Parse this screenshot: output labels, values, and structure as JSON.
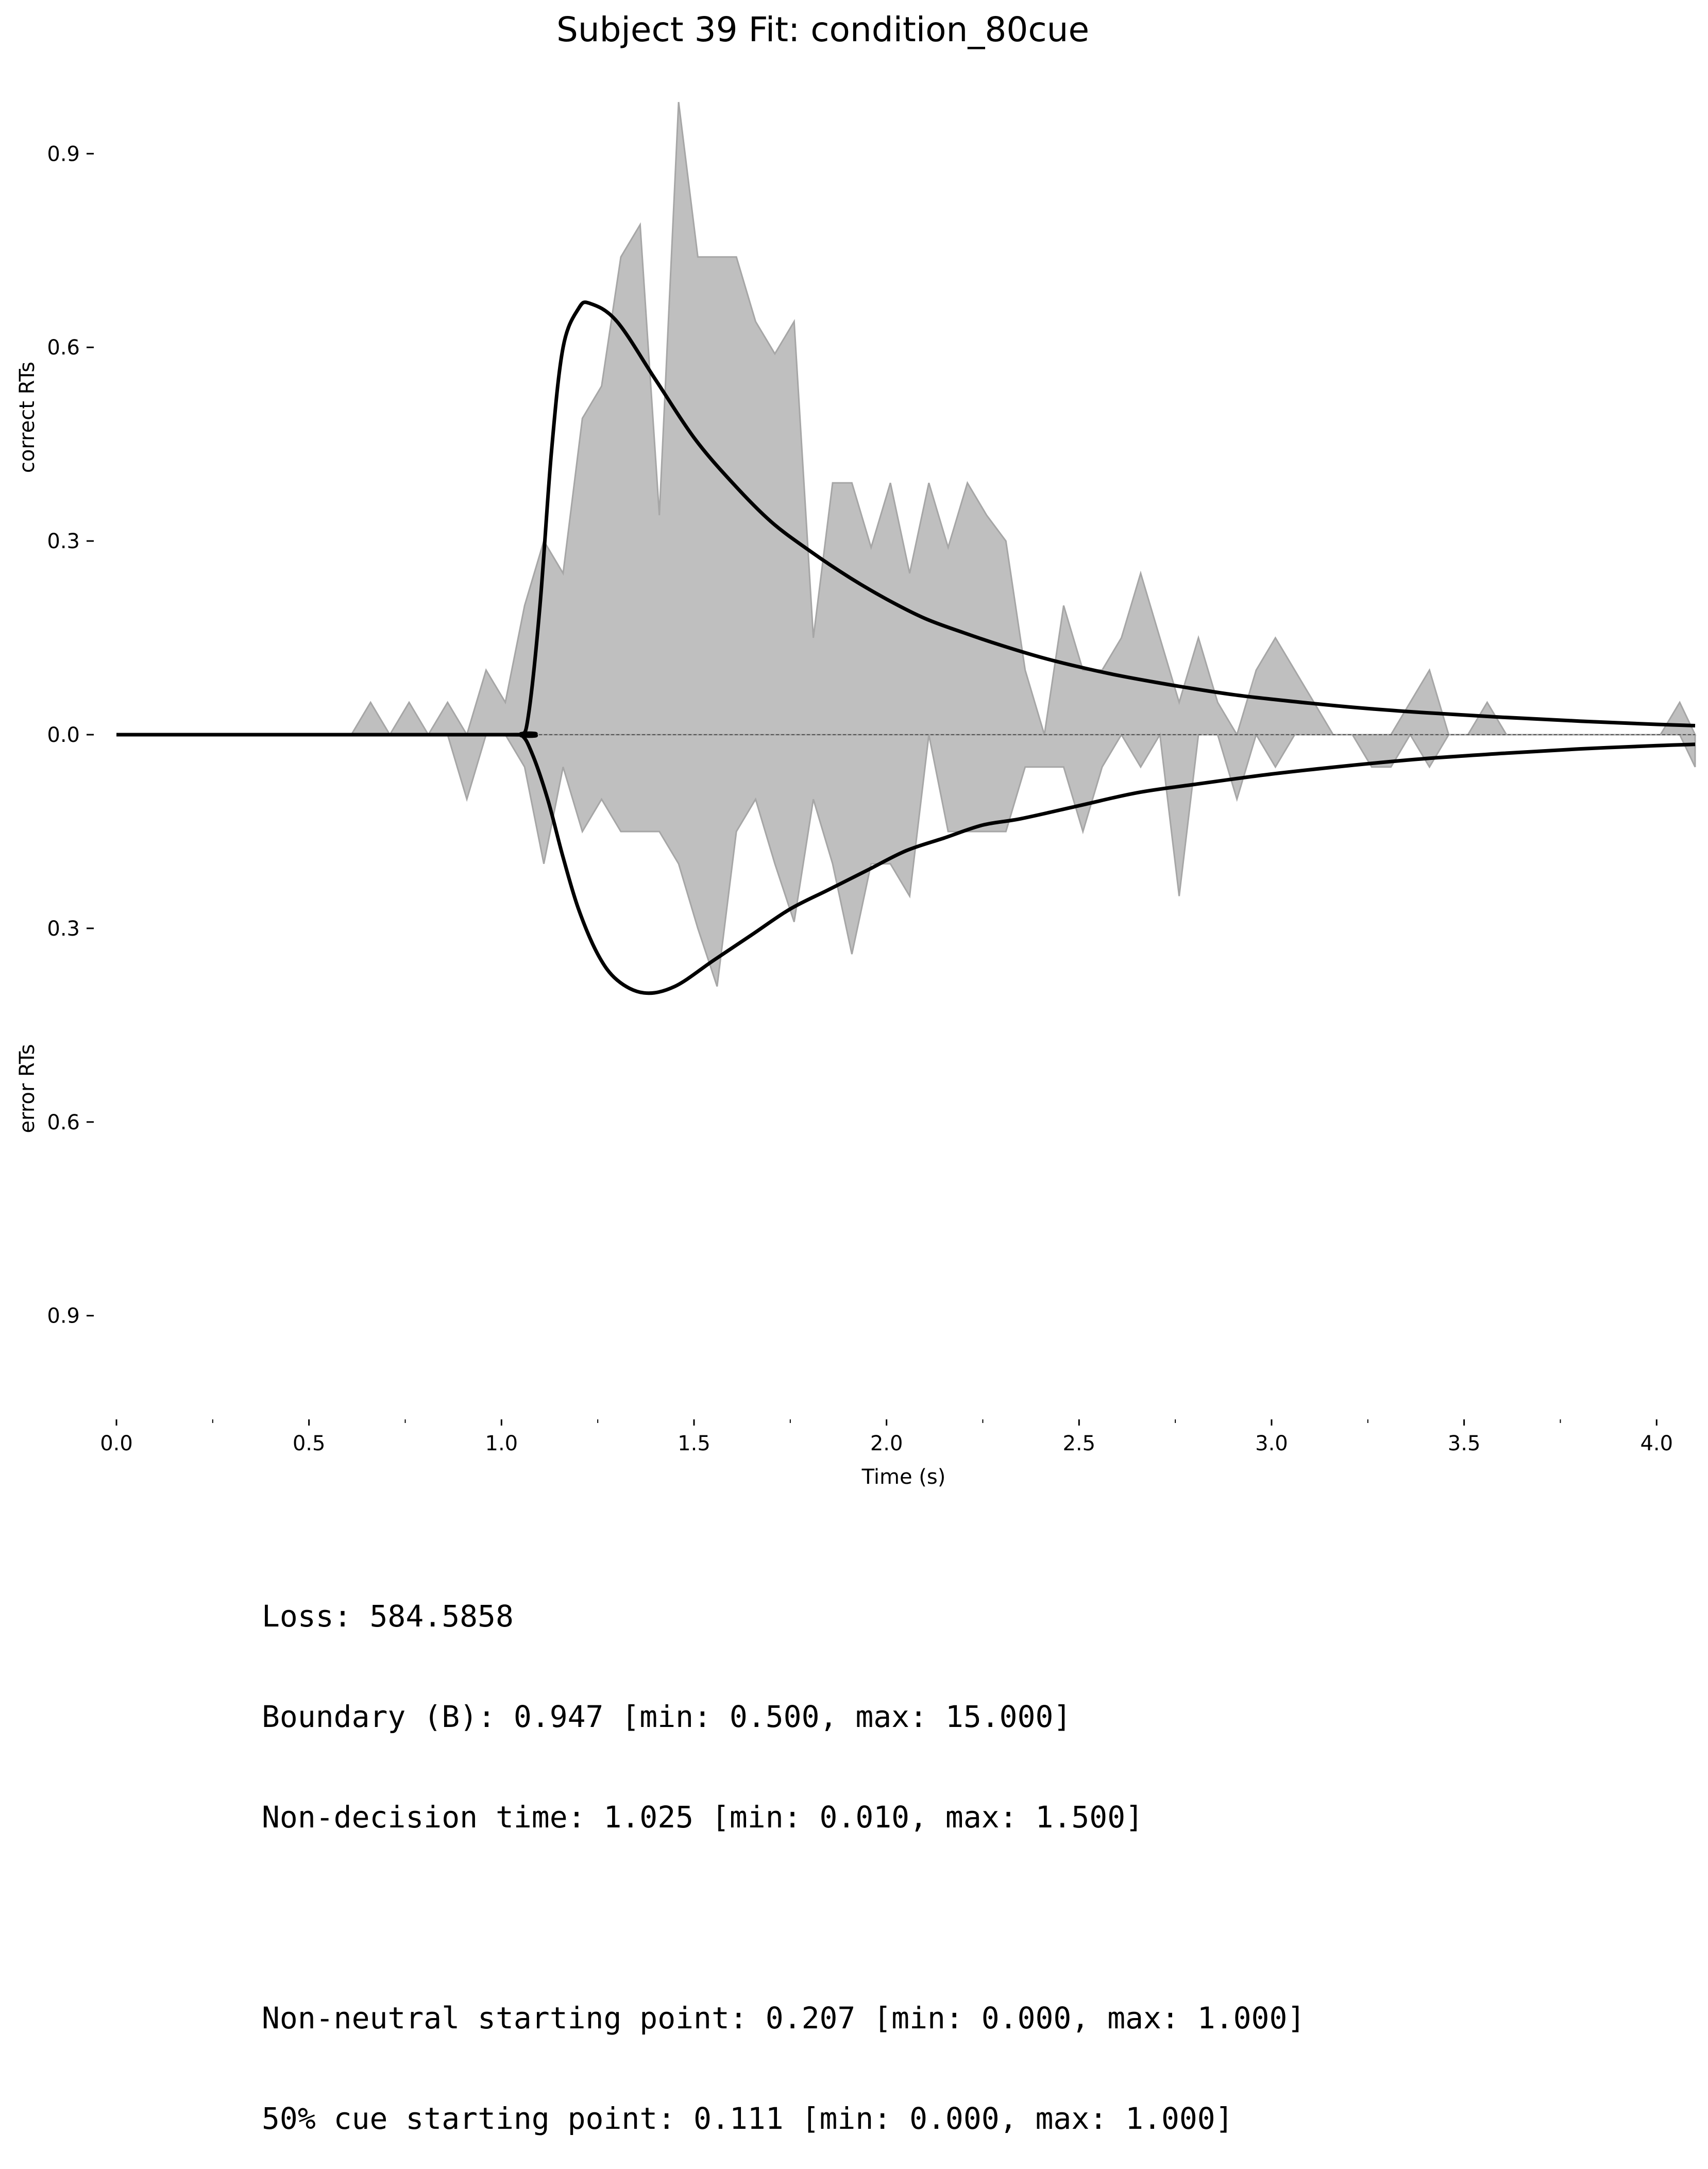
{
  "chart_data": {
    "type": "area",
    "title": "Subject 39 Fit: condition_80cue",
    "xlabel": "Time (s)",
    "ylabel_top": "correct RTs",
    "ylabel_bottom": "error RTs",
    "xlim": [
      0.0,
      4.1
    ],
    "ylim": [
      -1.05,
      1.0
    ],
    "x_ticks": [
      0.0,
      0.5,
      1.0,
      1.5,
      2.0,
      2.5,
      3.0,
      3.5,
      4.0
    ],
    "x_tick_labels": [
      "0.0",
      "0.5",
      "1.0",
      "1.5",
      "2.0",
      "2.5",
      "3.0",
      "3.5",
      "4.0"
    ],
    "x_minor_ticks": [
      0.25,
      0.75,
      1.25,
      1.75,
      2.25,
      2.75,
      3.25,
      3.75
    ],
    "y_ticks": [
      0.9,
      0.6,
      0.3,
      0.0,
      -0.3,
      -0.6,
      -0.9
    ],
    "y_tick_labels": [
      "0.9",
      "0.6",
      "0.3",
      "0.0",
      "0.3",
      "0.6",
      "0.9"
    ],
    "grid": false,
    "histogram_color": "#bfbfbf",
    "histogram_edge_color": "#a6a6a6",
    "model_color": "#000000",
    "correct_hist": {
      "x": [
        0.0,
        0.61,
        0.66,
        0.71,
        0.76,
        0.81,
        0.86,
        0.91,
        0.96,
        1.01,
        1.06,
        1.11,
        1.16,
        1.21,
        1.26,
        1.31,
        1.36,
        1.41,
        1.46,
        1.51,
        1.56,
        1.61,
        1.66,
        1.71,
        1.76,
        1.81,
        1.86,
        1.91,
        1.96,
        2.01,
        2.06,
        2.11,
        2.16,
        2.21,
        2.26,
        2.31,
        2.36,
        2.41,
        2.46,
        2.51,
        2.56,
        2.61,
        2.66,
        2.71,
        2.76,
        2.81,
        2.86,
        2.91,
        2.96,
        3.01,
        3.06,
        3.11,
        3.16,
        3.21,
        3.26,
        3.31,
        3.36,
        3.41,
        3.46,
        3.51,
        3.56,
        3.61,
        3.66,
        3.71,
        3.76,
        3.81,
        3.86,
        3.91,
        3.96,
        4.01,
        4.06,
        4.1
      ],
      "y": [
        0.0,
        0.0,
        0.05,
        0.0,
        0.05,
        0.0,
        0.05,
        0.0,
        0.1,
        0.05,
        0.2,
        0.3,
        0.25,
        0.49,
        0.54,
        0.74,
        0.79,
        0.34,
        0.98,
        0.74,
        0.74,
        0.74,
        0.64,
        0.59,
        0.64,
        0.15,
        0.39,
        0.39,
        0.29,
        0.39,
        0.25,
        0.39,
        0.29,
        0.39,
        0.34,
        0.3,
        0.1,
        0.0,
        0.2,
        0.1,
        0.1,
        0.15,
        0.25,
        0.15,
        0.05,
        0.15,
        0.05,
        0.0,
        0.1,
        0.15,
        0.1,
        0.05,
        0.0,
        0.0,
        0.0,
        0.0,
        0.05,
        0.1,
        0.0,
        0.0,
        0.05,
        0.0,
        0.0,
        0.0,
        0.0,
        0.0,
        0.0,
        0.0,
        0.0,
        0.0,
        0.05,
        0.0
      ]
    },
    "error_hist": {
      "x": [
        0.0,
        0.86,
        0.91,
        0.96,
        1.01,
        1.06,
        1.11,
        1.16,
        1.21,
        1.26,
        1.31,
        1.36,
        1.41,
        1.46,
        1.51,
        1.56,
        1.61,
        1.66,
        1.71,
        1.76,
        1.81,
        1.86,
        1.91,
        1.96,
        2.01,
        2.06,
        2.11,
        2.16,
        2.21,
        2.26,
        2.31,
        2.36,
        2.41,
        2.46,
        2.51,
        2.56,
        2.61,
        2.66,
        2.71,
        2.76,
        2.81,
        2.86,
        2.91,
        2.96,
        3.01,
        3.06,
        3.11,
        3.16,
        3.21,
        3.26,
        3.31,
        3.36,
        3.41,
        3.46,
        3.51,
        3.56,
        3.61,
        3.66,
        3.71,
        3.76,
        3.81,
        3.86,
        3.91,
        3.96,
        4.01,
        4.06,
        4.1
      ],
      "y": [
        0.0,
        0.0,
        0.1,
        0.0,
        0.0,
        0.05,
        0.2,
        0.05,
        0.15,
        0.1,
        0.15,
        0.15,
        0.15,
        0.2,
        0.3,
        0.39,
        0.15,
        0.1,
        0.2,
        0.29,
        0.1,
        0.2,
        0.34,
        0.2,
        0.2,
        0.25,
        0.0,
        0.15,
        0.15,
        0.15,
        0.15,
        0.05,
        0.05,
        0.05,
        0.15,
        0.05,
        0.0,
        0.05,
        0.0,
        0.25,
        0.0,
        0.0,
        0.1,
        0.0,
        0.05,
        0.0,
        0.0,
        0.0,
        0.0,
        0.05,
        0.05,
        0.0,
        0.05,
        0.0,
        0.0,
        0.0,
        0.0,
        0.0,
        0.0,
        0.0,
        0.0,
        0.0,
        0.0,
        0.0,
        0.0,
        0.0,
        0.05
      ]
    },
    "model_correct": {
      "x": [
        0.0,
        1.0,
        1.05,
        1.07,
        1.1,
        1.13,
        1.16,
        1.2,
        1.23,
        1.3,
        1.4,
        1.5,
        1.6,
        1.7,
        1.8,
        1.9,
        2.0,
        2.1,
        2.2,
        2.3,
        2.4,
        2.5,
        2.6,
        2.7,
        2.8,
        2.9,
        3.0,
        3.2,
        3.4,
        3.6,
        3.8,
        4.0,
        4.1
      ],
      "y": [
        0.0,
        0.0,
        0.0,
        0.03,
        0.2,
        0.44,
        0.6,
        0.66,
        0.668,
        0.64,
        0.55,
        0.46,
        0.39,
        0.33,
        0.285,
        0.245,
        0.21,
        0.18,
        0.158,
        0.138,
        0.12,
        0.105,
        0.092,
        0.081,
        0.071,
        0.062,
        0.055,
        0.043,
        0.034,
        0.027,
        0.021,
        0.016,
        0.014
      ]
    },
    "model_error": {
      "x": [
        0.0,
        1.0,
        1.05,
        1.08,
        1.12,
        1.16,
        1.2,
        1.25,
        1.3,
        1.37,
        1.45,
        1.55,
        1.65,
        1.75,
        1.85,
        1.95,
        2.05,
        2.15,
        2.25,
        2.35,
        2.5,
        2.65,
        2.8,
        3.0,
        3.2,
        3.4,
        3.6,
        3.8,
        4.0,
        4.1
      ],
      "y": [
        0.0,
        0.0,
        0.0,
        0.03,
        0.1,
        0.19,
        0.27,
        0.34,
        0.38,
        0.4,
        0.39,
        0.35,
        0.31,
        0.27,
        0.24,
        0.21,
        0.18,
        0.16,
        0.14,
        0.13,
        0.11,
        0.09,
        0.077,
        0.061,
        0.048,
        0.037,
        0.029,
        0.022,
        0.017,
        0.015
      ]
    }
  },
  "stats": {
    "loss": "Loss: 584.5858",
    "boundary": "Boundary (B): 0.947 [min: 0.500, max: 15.000]",
    "non_decision": "Non-decision time: 1.025 [min: 0.010, max: 1.500]",
    "non_neutral_start": "Non-neutral starting point: 0.207 [min: 0.000, max: 1.000]",
    "cue50_start": "50% cue starting point: 0.111 [min: 0.000, max: 1.000]"
  }
}
